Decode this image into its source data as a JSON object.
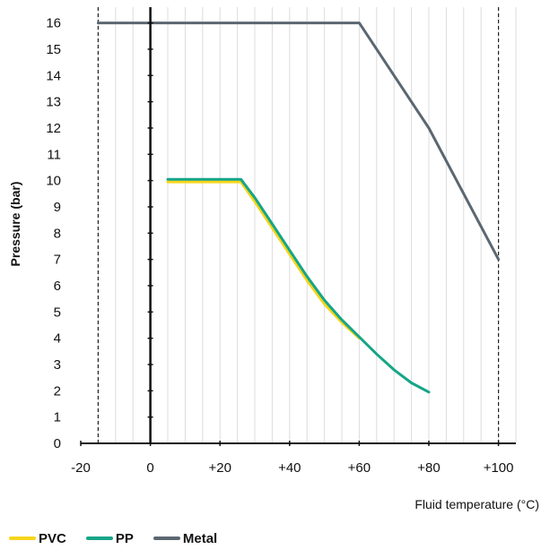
{
  "chart_data": {
    "type": "line",
    "title": "",
    "xlabel": "Fluid temperature (°C)",
    "ylabel": "Pressure (bar)",
    "xlim": [
      -20,
      105
    ],
    "ylim": [
      0,
      16.6
    ],
    "x_ticks": [
      -20,
      0,
      20,
      40,
      60,
      80,
      100
    ],
    "x_tick_labels": [
      "-20",
      "0",
      "+20",
      "+40",
      "+60",
      "+80",
      "+100"
    ],
    "y_ticks": [
      0,
      1,
      2,
      3,
      4,
      5,
      6,
      7,
      8,
      9,
      10,
      11,
      12,
      13,
      14,
      15,
      16
    ],
    "y_tick_labels": [
      "0",
      "1",
      "2",
      "3",
      "4",
      "5",
      "6",
      "7",
      "8",
      "9",
      "10",
      "11",
      "12",
      "13",
      "14",
      "15",
      "16"
    ],
    "grid": true,
    "reference_lines_x": [
      -15,
      100
    ],
    "legend_position": "bottom-left",
    "series": [
      {
        "name": "PVC",
        "color": "#F6D51B",
        "points": [
          [
            5,
            9.95
          ],
          [
            26,
            9.95
          ],
          [
            30,
            9.2
          ],
          [
            35,
            8.2
          ],
          [
            40,
            7.2
          ],
          [
            45,
            6.2
          ],
          [
            50,
            5.3
          ],
          [
            55,
            4.6
          ],
          [
            60,
            4.0
          ]
        ]
      },
      {
        "name": "PP",
        "color": "#16A587",
        "points": [
          [
            5,
            10.05
          ],
          [
            26,
            10.05
          ],
          [
            30,
            9.35
          ],
          [
            35,
            8.35
          ],
          [
            40,
            7.35
          ],
          [
            45,
            6.35
          ],
          [
            50,
            5.45
          ],
          [
            55,
            4.7
          ],
          [
            60,
            4.05
          ],
          [
            65,
            3.4
          ],
          [
            70,
            2.8
          ],
          [
            75,
            2.3
          ],
          [
            80,
            1.95
          ]
        ]
      },
      {
        "name": "Metal",
        "color": "#5B6771",
        "points": [
          [
            -15,
            16
          ],
          [
            60,
            16
          ],
          [
            80,
            12
          ],
          [
            100,
            7
          ]
        ]
      }
    ]
  }
}
